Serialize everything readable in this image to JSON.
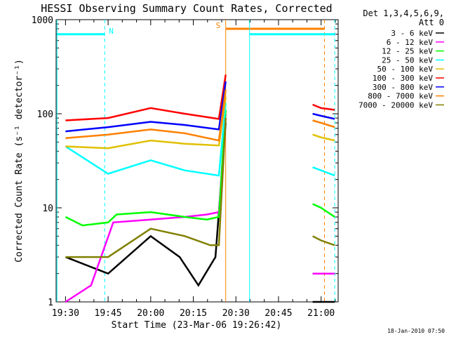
{
  "chart_data": {
    "type": "line",
    "title": "HESSI Observing Summary Count Rates, Corrected",
    "ylabel": "Corrected Count Rate (s⁻¹ detector⁻¹)",
    "xlabel": "Start Time (23-Mar-06 19:26:42)",
    "y_scale": "log",
    "ylim": [
      1,
      1000
    ],
    "xlim": [
      "19:26:42",
      "21:06:00"
    ],
    "y_ticks": [
      {
        "value": 1,
        "label": "1"
      },
      {
        "value": 10,
        "label": "10"
      },
      {
        "value": 100,
        "label": "100"
      },
      {
        "value": 1000,
        "label": "1000"
      }
    ],
    "x_ticks": [
      "19:30",
      "19:45",
      "20:00",
      "20:15",
      "20:30",
      "20:45",
      "21:00"
    ],
    "legend_title": "Det 1,3,4,5,6,9, Att 0",
    "legend_placement": "right",
    "grid": false,
    "series": [
      {
        "name": "3 - 6 keV",
        "color": "#000000",
        "values": [
          [
            19.5,
            3
          ],
          [
            19.75,
            2
          ],
          [
            20.0,
            5
          ],
          [
            20.17,
            3
          ],
          [
            20.28,
            1.5
          ],
          [
            20.38,
            3
          ],
          [
            20.44,
            80
          ],
          [
            20.95,
            1
          ],
          [
            21.0,
            1
          ],
          [
            21.08,
            1
          ]
        ]
      },
      {
        "name": "6 - 12 keV",
        "color": "#ff00ff",
        "values": [
          [
            19.5,
            1
          ],
          [
            19.65,
            1.5
          ],
          [
            19.78,
            7
          ],
          [
            20.0,
            7.5
          ],
          [
            20.2,
            8
          ],
          [
            20.33,
            8.5
          ],
          [
            20.4,
            9
          ],
          [
            20.44,
            100
          ],
          [
            20.95,
            2
          ],
          [
            21.0,
            2
          ],
          [
            21.08,
            2
          ]
        ]
      },
      {
        "name": "12 - 25 keV",
        "color": "#00ff00",
        "values": [
          [
            19.5,
            8
          ],
          [
            19.6,
            6.5
          ],
          [
            19.75,
            7
          ],
          [
            19.8,
            8.5
          ],
          [
            20.0,
            9
          ],
          [
            20.2,
            8
          ],
          [
            20.33,
            7.5
          ],
          [
            20.4,
            8
          ],
          [
            20.44,
            110
          ],
          [
            20.95,
            11
          ],
          [
            21.0,
            10
          ],
          [
            21.08,
            8
          ]
        ]
      },
      {
        "name": "25 - 50 keV",
        "color": "#00ffff",
        "values": [
          [
            19.5,
            45
          ],
          [
            19.75,
            23
          ],
          [
            20.0,
            32
          ],
          [
            20.2,
            25
          ],
          [
            20.4,
            22
          ],
          [
            20.44,
            130
          ],
          [
            20.95,
            27
          ],
          [
            21.0,
            25
          ],
          [
            21.08,
            22
          ]
        ]
      },
      {
        "name": "50 - 100 keV",
        "color": "#e0c000",
        "values": [
          [
            19.5,
            45
          ],
          [
            19.75,
            43
          ],
          [
            20.0,
            52
          ],
          [
            20.2,
            48
          ],
          [
            20.4,
            46
          ],
          [
            20.44,
            150
          ],
          [
            20.95,
            60
          ],
          [
            21.0,
            56
          ],
          [
            21.08,
            52
          ]
        ]
      },
      {
        "name": "100 - 300 keV",
        "color": "#ff0000",
        "values": [
          [
            19.5,
            85
          ],
          [
            19.75,
            90
          ],
          [
            20.0,
            115
          ],
          [
            20.2,
            100
          ],
          [
            20.4,
            88
          ],
          [
            20.44,
            260
          ],
          [
            20.95,
            125
          ],
          [
            21.0,
            115
          ],
          [
            21.08,
            110
          ]
        ]
      },
      {
        "name": "300 - 800 keV",
        "color": "#0000ff",
        "values": [
          [
            19.5,
            65
          ],
          [
            19.75,
            72
          ],
          [
            20.0,
            82
          ],
          [
            20.2,
            76
          ],
          [
            20.4,
            68
          ],
          [
            20.44,
            220
          ],
          [
            20.95,
            100
          ],
          [
            21.0,
            95
          ],
          [
            21.08,
            88
          ]
        ]
      },
      {
        "name": "800 - 7000 keV",
        "color": "#ff8000",
        "values": [
          [
            19.5,
            55
          ],
          [
            19.75,
            60
          ],
          [
            20.0,
            68
          ],
          [
            20.2,
            62
          ],
          [
            20.4,
            52
          ],
          [
            20.44,
            180
          ],
          [
            20.95,
            85
          ],
          [
            21.0,
            80
          ],
          [
            21.08,
            72
          ]
        ]
      },
      {
        "name": "7000 - 20000 keV",
        "color": "#808000",
        "values": [
          [
            19.5,
            3
          ],
          [
            19.75,
            3
          ],
          [
            20.0,
            6
          ],
          [
            20.2,
            5
          ],
          [
            20.35,
            4
          ],
          [
            20.4,
            4
          ],
          [
            20.44,
            90
          ],
          [
            20.95,
            5
          ],
          [
            21.0,
            4.5
          ],
          [
            21.08,
            4
          ]
        ]
      }
    ],
    "annotations": [
      {
        "label": "N",
        "color": "#00ffff",
        "y": 700,
        "x_start": 19.45,
        "x_end": 19.73
      },
      {
        "label": "S",
        "color": "#ff8000",
        "y": 800,
        "x_start": 20.44,
        "x_end": 21.02
      },
      {
        "label": "",
        "color": "#00ffff",
        "y": 700,
        "x_start": 20.58,
        "x_end": 21.08
      }
    ]
  },
  "footer_timestamp": "18-Jan-2010 07:50"
}
